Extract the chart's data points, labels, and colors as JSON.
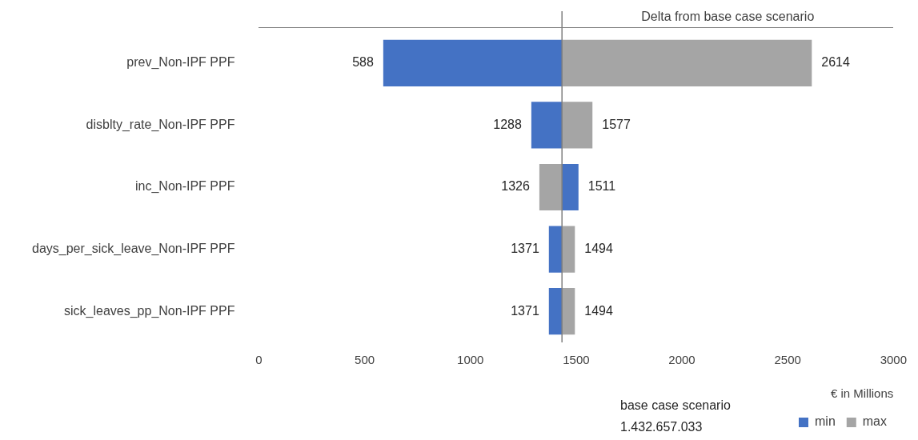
{
  "chart_data": {
    "type": "bar",
    "orientation": "horizontal",
    "title": "Delta from base case scenario",
    "xlabel": "€ in Millions",
    "categories": [
      "prev_Non-IPF PPF",
      "disblty_rate_Non-IPF PPF",
      "inc_Non-IPF PPF",
      "days_per_sick_leave_Non-IPF PPF",
      "sick_leaves_pp_Non-IPF PPF"
    ],
    "series": [
      {
        "name": "min",
        "color": "#4472c4",
        "base": [
          1433,
          1433,
          1433,
          1433,
          1433
        ],
        "values": [
          -845,
          -145,
          78,
          -62,
          -62
        ],
        "value_labels": [
          "588",
          "1288",
          "1511",
          "1371",
          "1371"
        ]
      },
      {
        "name": "max",
        "color": "#a5a5a5",
        "base": [
          1433,
          1433,
          1433,
          1433,
          1433
        ],
        "values": [
          1181,
          144,
          -107,
          61,
          61
        ],
        "value_labels": [
          "2614",
          "1577",
          "1326",
          "1494",
          "1494"
        ]
      }
    ],
    "xlim": [
      0,
      3000
    ],
    "xticks": [
      0,
      500,
      1000,
      1500,
      2000,
      2500,
      3000
    ],
    "grid": false,
    "legend": "bottom",
    "ref_lines": [
      {
        "axis": "x",
        "value": 1433,
        "color": "#7f7f7f"
      }
    ],
    "annotations": [
      "base case scenario",
      "1.432.657.033"
    ]
  }
}
